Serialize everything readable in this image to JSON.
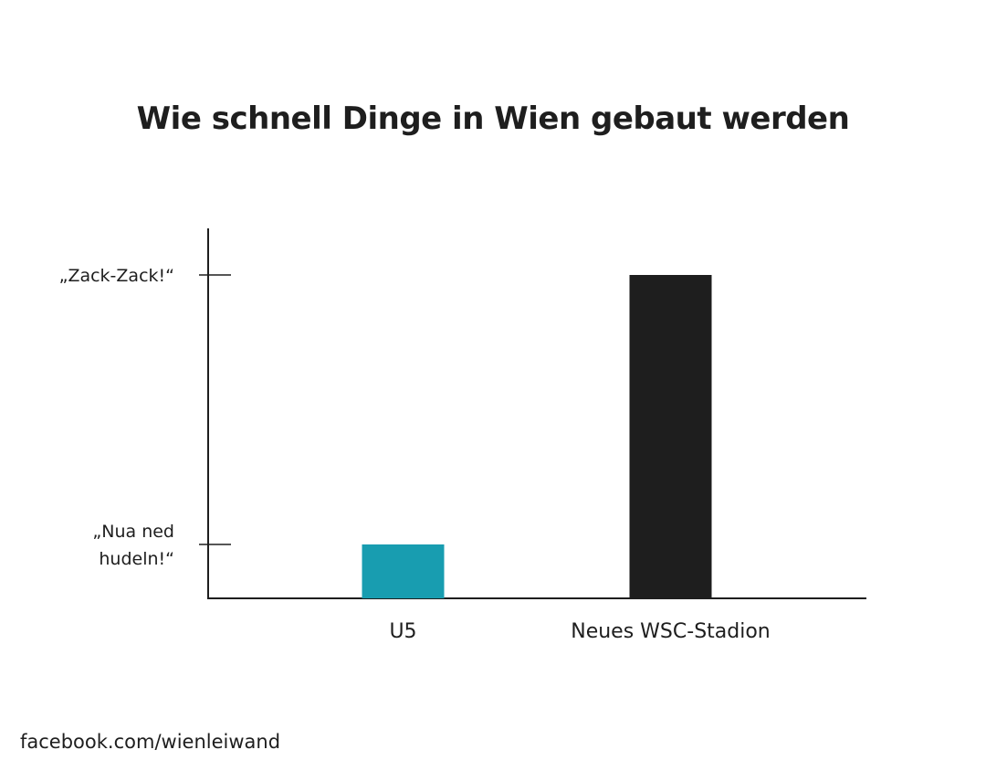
{
  "chart_data": {
    "type": "bar",
    "title": "Wie schnell Dinge in Wien gebaut werden",
    "xlabel": "",
    "ylabel": "",
    "categories": [
      "U5",
      "Neues WSC-Stadion"
    ],
    "values": [
      1,
      6
    ],
    "colors": [
      "#189db0",
      "#1e1e1e"
    ],
    "ylim": [
      0,
      7
    ],
    "yticks": [
      {
        "value": 1,
        "lines": [
          "„Nua ned",
          "hudeln!“"
        ]
      },
      {
        "value": 6,
        "lines": [
          "„Zack-Zack!“"
        ]
      }
    ],
    "grid": false
  },
  "credit": "facebook.com/wienleiwand"
}
